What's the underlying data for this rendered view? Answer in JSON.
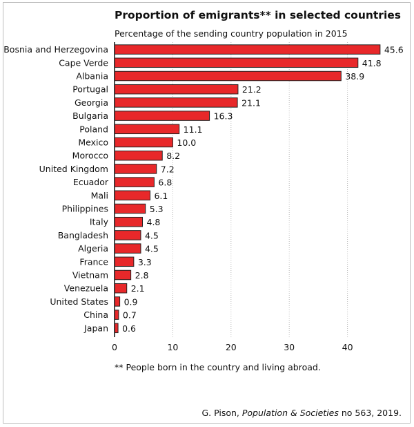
{
  "chart_data": {
    "type": "bar",
    "orientation": "horizontal",
    "title": "Proportion of emigrants** in selected countries",
    "subtitle": "Percentage of the sending country population in 2015",
    "categories": [
      "Bosnia and Herzegovina",
      "Cape Verde",
      "Albania",
      "Portugal",
      "Georgia",
      "Bulgaria",
      "Poland",
      "Mexico",
      "Morocco",
      "United Kingdom",
      "Ecuador",
      "Mali",
      "Philippines",
      "Italy",
      "Bangladesh",
      "Algeria",
      "France",
      "Vietnam",
      "Venezuela",
      "United States",
      "China",
      "Japan"
    ],
    "values": [
      45.6,
      41.8,
      38.9,
      21.2,
      21.1,
      16.3,
      11.1,
      10.0,
      8.2,
      7.2,
      6.8,
      6.1,
      5.3,
      4.8,
      4.5,
      4.5,
      3.3,
      2.8,
      2.1,
      0.9,
      0.7,
      0.6
    ],
    "value_labels": [
      "45.6",
      "41.8",
      "38.9",
      "21.2",
      "21.1",
      "16.3",
      "11.1",
      "10.0",
      "8.2",
      "7.2",
      "6.8",
      "6.1",
      "5.3",
      "4.8",
      "4.5",
      "4.5",
      "3.3",
      "2.8",
      "2.1",
      "0.9",
      "0.7",
      "0.6"
    ],
    "xticks": [
      "0",
      "10",
      "20",
      "30",
      "40"
    ],
    "xlim": [
      0,
      47
    ],
    "xlabel": "",
    "ylabel": "",
    "grid": "vertical dotted",
    "bar_color": "#e8282a",
    "footnote": "** People born in the country and living abroad.",
    "source": {
      "author": "G. Pison, ",
      "publication": "Population & Societies",
      "rest": " no 563, 2019."
    }
  }
}
